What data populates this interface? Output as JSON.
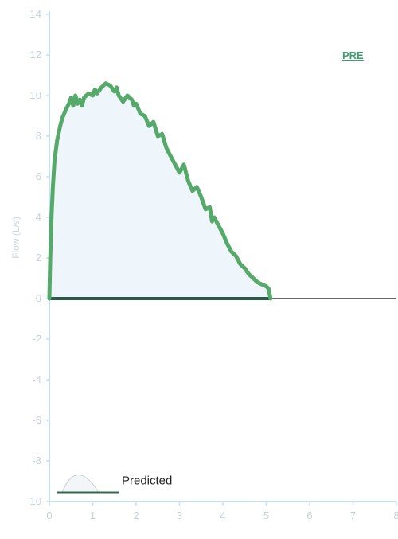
{
  "chart_data": {
    "type": "area",
    "title": "",
    "tag": "PRE",
    "ylabel": "Flow (L/s)",
    "xlabel": "",
    "xlim": [
      0,
      8
    ],
    "ylim": [
      -10,
      14
    ],
    "xticks": [
      0,
      1,
      2,
      3,
      4,
      5,
      6,
      7,
      8
    ],
    "yticks": [
      14,
      12,
      10,
      8,
      6,
      4,
      2,
      0,
      -2,
      -4,
      -6,
      -8,
      -10
    ],
    "grid": false,
    "legend": {
      "position": "bottom-left",
      "label": "Predicted"
    },
    "series": [
      {
        "values_x": [
          0.0,
          0.02,
          0.05,
          0.08,
          0.12,
          0.18,
          0.25,
          0.3,
          0.38,
          0.45,
          0.5,
          0.55,
          0.6,
          0.65,
          0.7,
          0.75,
          0.8,
          0.9,
          1.0,
          1.05,
          1.1,
          1.2,
          1.3,
          1.4,
          1.5,
          1.55,
          1.6,
          1.7,
          1.8,
          1.9,
          1.95,
          2.0,
          2.1,
          2.2,
          2.3,
          2.4,
          2.5,
          2.6,
          2.7,
          2.8,
          2.9,
          3.0,
          3.1,
          3.2,
          3.3,
          3.4,
          3.5,
          3.6,
          3.7,
          3.75,
          3.8,
          3.9,
          4.0,
          4.1,
          4.2,
          4.3,
          4.4,
          4.5,
          4.6,
          4.7,
          4.8,
          4.9,
          5.0,
          5.05,
          5.07,
          5.1
        ],
        "values_y": [
          0.0,
          2.0,
          4.0,
          5.5,
          6.8,
          7.8,
          8.5,
          8.9,
          9.3,
          9.6,
          9.9,
          9.5,
          10.0,
          9.6,
          9.8,
          9.5,
          9.9,
          10.1,
          10.0,
          10.3,
          10.1,
          10.4,
          10.6,
          10.5,
          10.2,
          10.4,
          10.0,
          9.7,
          10.0,
          9.8,
          9.5,
          9.6,
          9.1,
          9.0,
          8.5,
          8.7,
          8.0,
          8.1,
          7.4,
          7.0,
          6.6,
          6.2,
          6.6,
          5.8,
          5.3,
          5.5,
          5.0,
          4.4,
          4.5,
          3.8,
          4.0,
          3.6,
          3.2,
          2.7,
          2.3,
          2.1,
          1.7,
          1.5,
          1.2,
          1.0,
          0.8,
          0.7,
          0.6,
          0.5,
          0.3,
          0.0
        ]
      }
    ],
    "colors": {
      "flow_line": "#55aa6a",
      "flow_fill": "#eef5fb",
      "baseline": "#2d5a48",
      "axis": "#c6e0ef",
      "zero_line": "#333333",
      "legend_line": "#2f6b4c"
    }
  }
}
